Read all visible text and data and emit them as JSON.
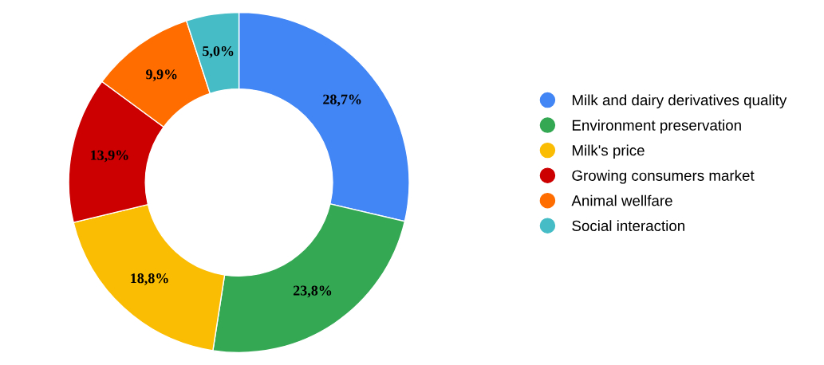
{
  "chart_data": {
    "type": "donut",
    "categories": [
      "Milk and dairy derivatives quality",
      "Environment preservation",
      "Milk's price",
      "Growing consumers market",
      "Animal wellfare",
      "Social interaction"
    ],
    "values": [
      28.7,
      23.8,
      18.8,
      13.9,
      9.9,
      5.0
    ],
    "value_labels": [
      "28,7%",
      "23,8%",
      "18,8%",
      "13,9%",
      "9,9%",
      "5,0%"
    ],
    "colors": [
      "#4285f4",
      "#34a853",
      "#fbbc04",
      "#cc0000",
      "#ff6d01",
      "#46bdc6"
    ],
    "legend": "right"
  }
}
